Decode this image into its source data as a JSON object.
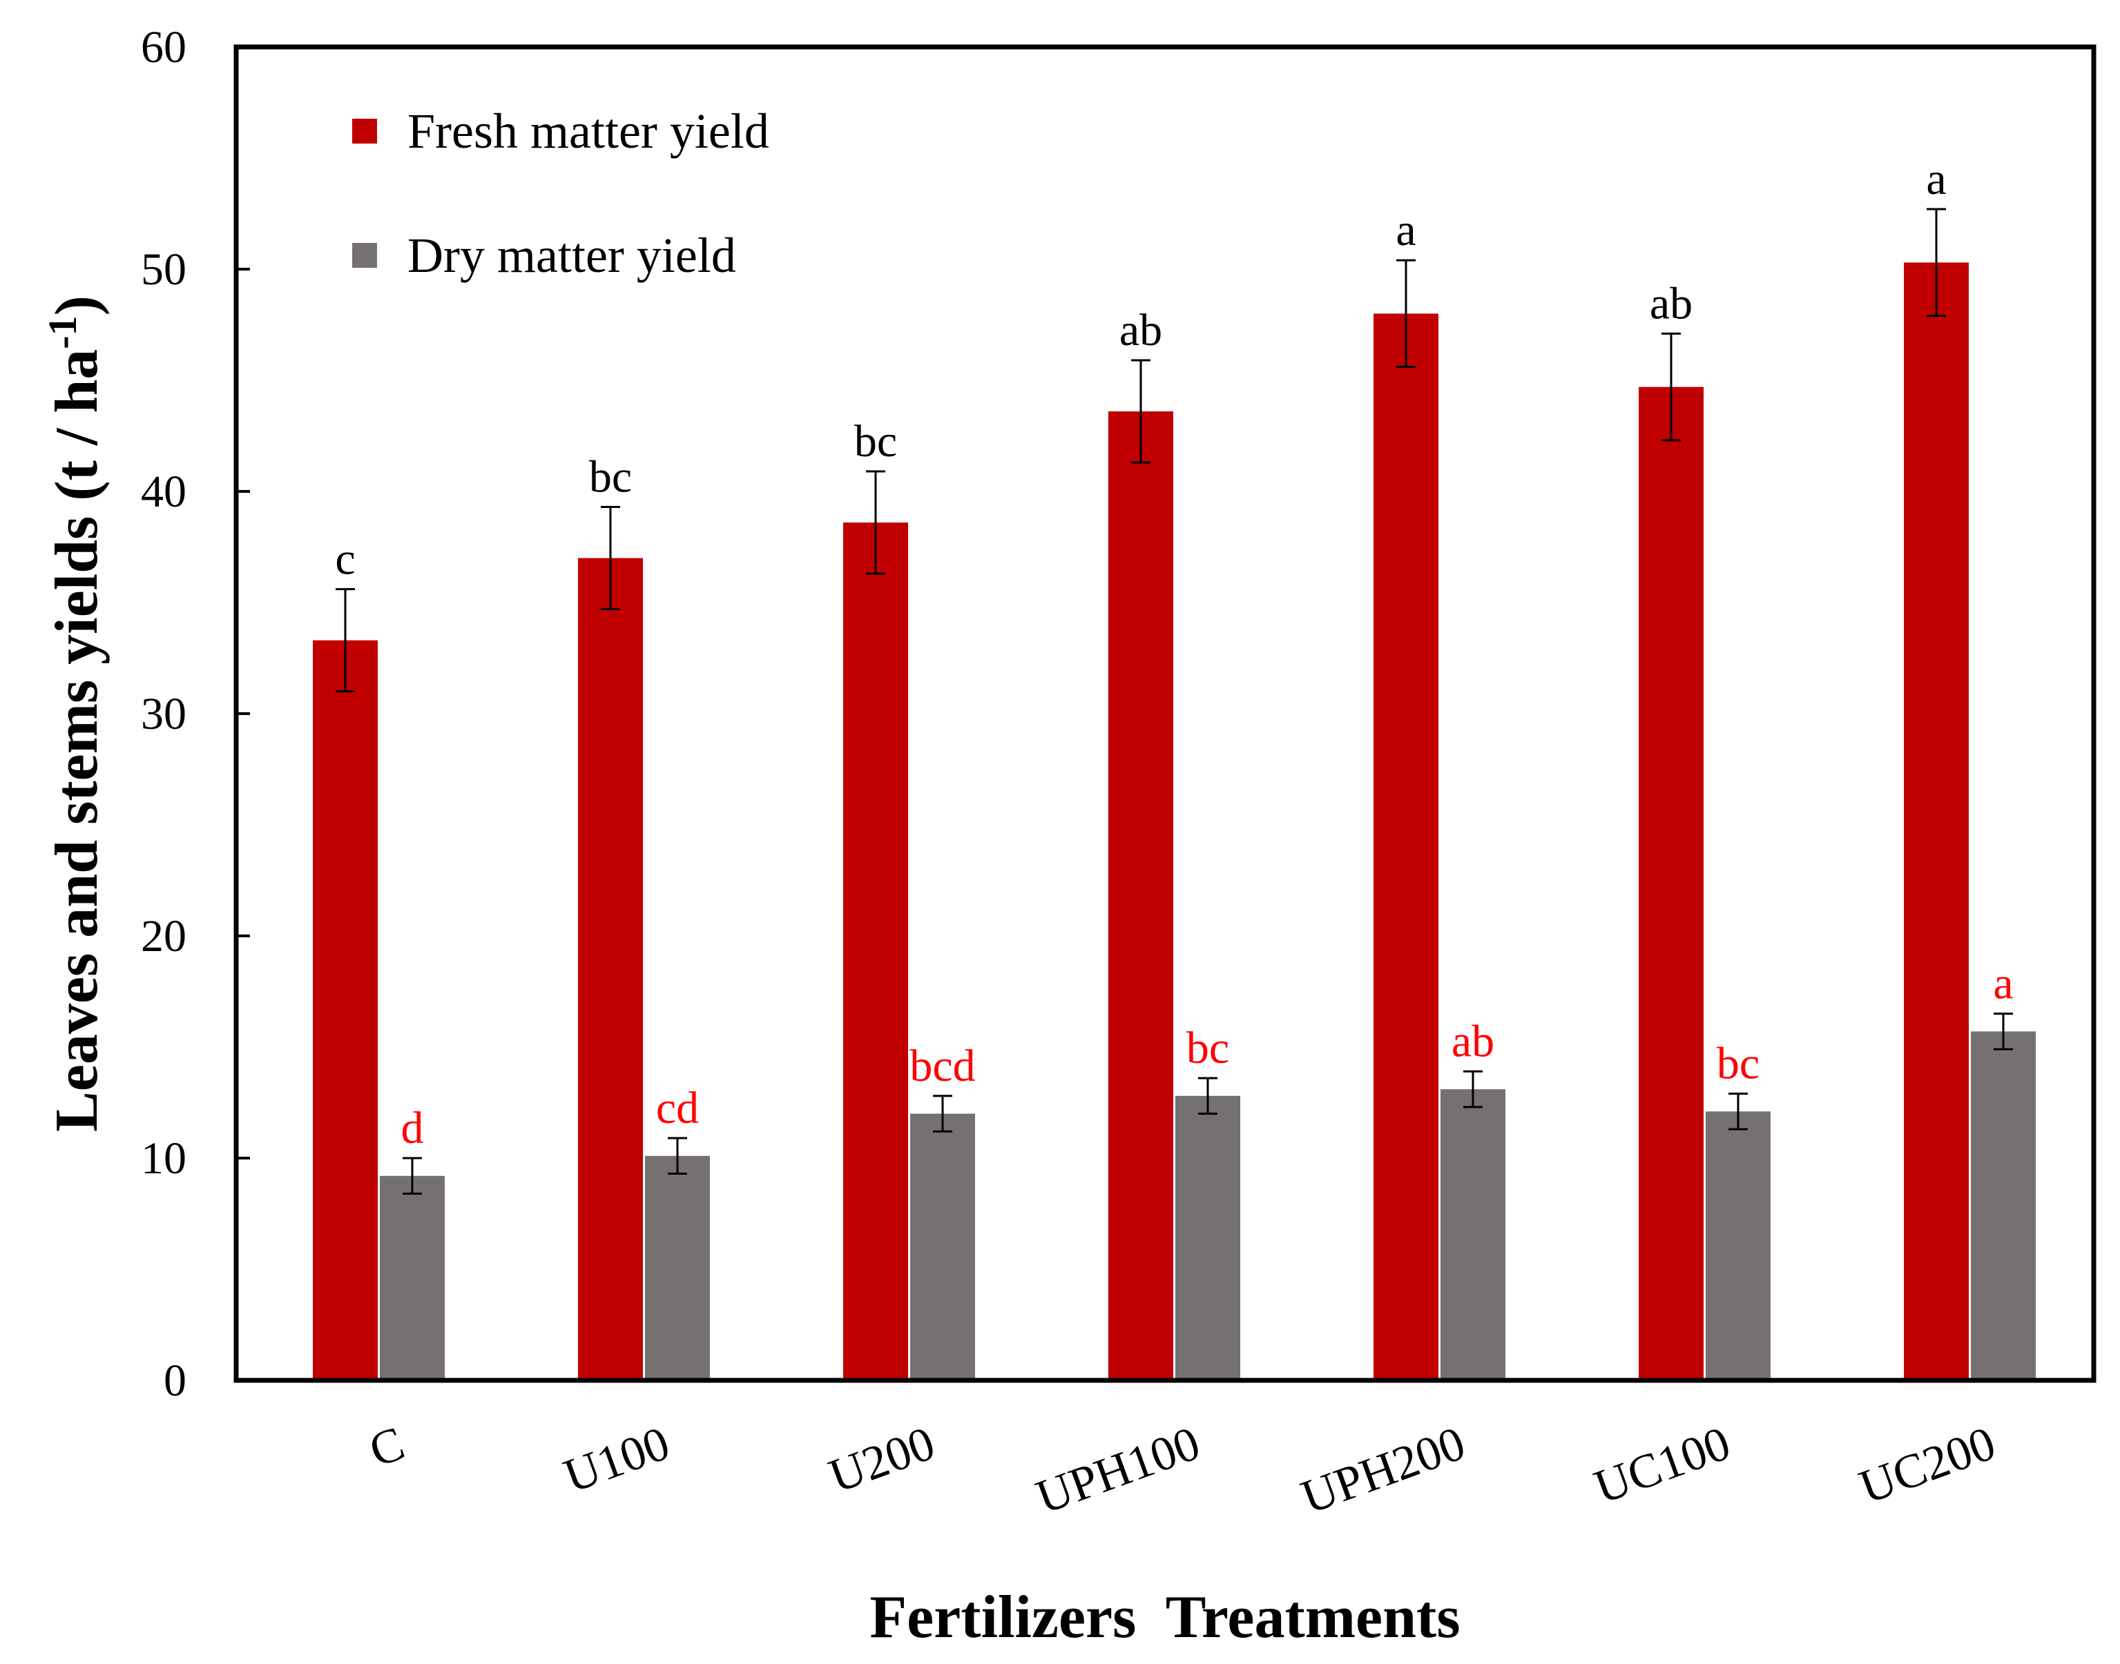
{
  "chart_data": {
    "type": "bar",
    "title": "",
    "xlabel": "Fertilizers  Treatments",
    "ylabel": "Leaves and stems yields (t / ha",
    "ylabel_sup": "-1",
    "ylabel_end": ")",
    "ylim": [
      0,
      60
    ],
    "yticks": [
      0,
      10,
      20,
      30,
      40,
      50,
      60
    ],
    "grid": false,
    "legend_position": "top-left",
    "categories": [
      "C",
      "U100",
      "U200",
      "UPH100",
      "UPH200",
      "UC100",
      "UC200"
    ],
    "series": [
      {
        "name": "Fresh matter yield",
        "color": "#c00000",
        "label_color": "#000000",
        "values": [
          33.3,
          37.0,
          38.6,
          43.6,
          48.0,
          44.7,
          50.3
        ],
        "errors": [
          2.3,
          2.3,
          2.3,
          2.3,
          2.4,
          2.4,
          2.4
        ],
        "significance": [
          "c",
          "bc",
          "bc",
          "ab",
          "a",
          "ab",
          "a"
        ]
      },
      {
        "name": "Dry matter yield",
        "color": "#767171",
        "label_color": "#ff0000",
        "values": [
          9.2,
          10.1,
          12.0,
          12.8,
          13.1,
          12.1,
          15.7
        ],
        "errors": [
          0.8,
          0.8,
          0.8,
          0.8,
          0.8,
          0.8,
          0.8
        ],
        "significance": [
          "d",
          "cd",
          "bcd",
          "bc",
          "ab",
          "bc",
          "a"
        ]
      }
    ]
  }
}
